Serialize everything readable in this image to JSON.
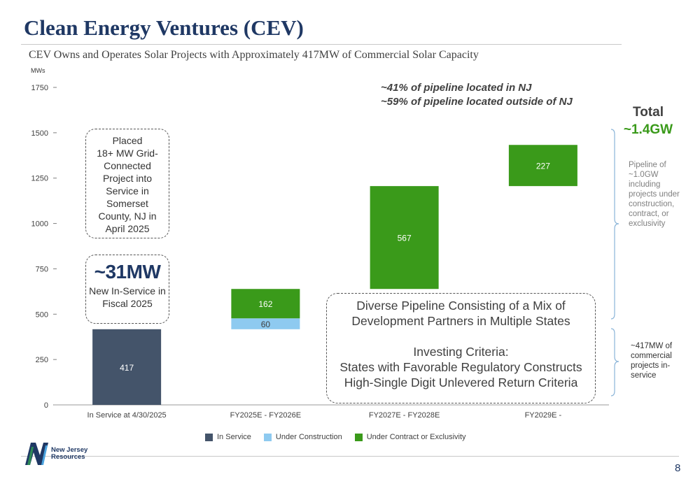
{
  "title": "Clean Energy Ventures (CEV)",
  "subtitle": "CEV Owns and Operates Solar Projects with Approximately 417MW of Commercial Solar Capacity",
  "chart_data": {
    "type": "bar",
    "stacked": true,
    "waterfall": true,
    "ylabel": "MWs",
    "ylim": [
      0,
      1750
    ],
    "yticks": [
      0,
      250,
      500,
      750,
      1000,
      1250,
      1500,
      1750
    ],
    "categories": [
      "In Service at 4/30/2025",
      "FY2025E - FY2026E",
      "FY2027E - FY2028E",
      "FY2029E -"
    ],
    "series": [
      {
        "name": "In Service",
        "color": "#44546a",
        "bars": [
          {
            "category": 0,
            "base": 0,
            "value": 417
          }
        ]
      },
      {
        "name": "Under Construction",
        "color": "#8ecaf0",
        "bars": [
          {
            "category": 1,
            "base": 417,
            "value": 60
          }
        ]
      },
      {
        "name": "Under Contract or Exclusivity",
        "color": "#3a9a1a",
        "bars": [
          {
            "category": 1,
            "base": 477,
            "value": 162
          },
          {
            "category": 2,
            "base": 639,
            "value": 567
          },
          {
            "category": 3,
            "base": 1206,
            "value": 227
          }
        ]
      }
    ],
    "legend_position": "bottom"
  },
  "annotations": {
    "placed_lines": [
      "Placed",
      "18+ MW Grid-",
      "Connected",
      "Project  into",
      "Service in",
      "Somerset",
      "County, NJ in",
      "April 2025"
    ],
    "new_mw": "~31MW",
    "new_mw_lines": [
      "New In-Service in",
      "Fiscal 2025"
    ],
    "pipeline_lines": [
      "Diverse Pipeline Consisting of a Mix of",
      "Development Partners in Multiple States"
    ],
    "criteria_lines": [
      "Investing Criteria:",
      "States with Favorable Regulatory Constructs",
      "High-Single Digit Unlevered Return Criteria"
    ],
    "pct_nj": "~41% of pipeline located in NJ",
    "pct_outside": "~59% of pipeline located outside of NJ",
    "total_label": "Total",
    "total_value": "~1.4GW",
    "pipeline_side_lines": [
      "Pipeline of",
      "~1.0GW",
      "including",
      "projects under",
      "construction,",
      "contract, or",
      "exclusivity"
    ],
    "inservice_side_lines": [
      "~417MW of",
      "commercial",
      "projects in-",
      "service"
    ]
  },
  "logo": {
    "line1": "New Jersey",
    "line2": "Resources"
  },
  "page_number": "8",
  "colors": {
    "title": "#1f3864",
    "in_service": "#44546a",
    "under_construction": "#8ecaf0",
    "under_contract": "#3a9a1a",
    "total_green": "#3a9a1a"
  }
}
